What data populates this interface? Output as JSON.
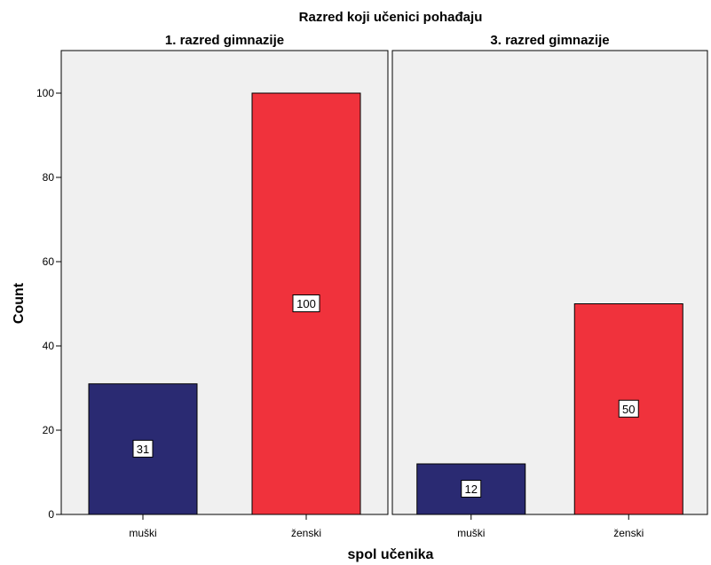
{
  "chart_data": {
    "type": "bar",
    "title": "Razred koji učenici pohađaju",
    "xlabel": "spol učenika",
    "ylabel": "Count",
    "ylim": [
      0,
      100
    ],
    "yticks": [
      0,
      20,
      40,
      60,
      80,
      100
    ],
    "grid": false,
    "categories": [
      "muški",
      "ženski"
    ],
    "colors": {
      "muški": "#2a2a72",
      "ženski": "#f0323c",
      "panel_bg": "#f0f0f0"
    },
    "panels": [
      {
        "name": "1. razred gimnazije",
        "values": [
          31,
          100
        ]
      },
      {
        "name": "3. razred gimnazije",
        "values": [
          12,
          50
        ]
      }
    ]
  }
}
